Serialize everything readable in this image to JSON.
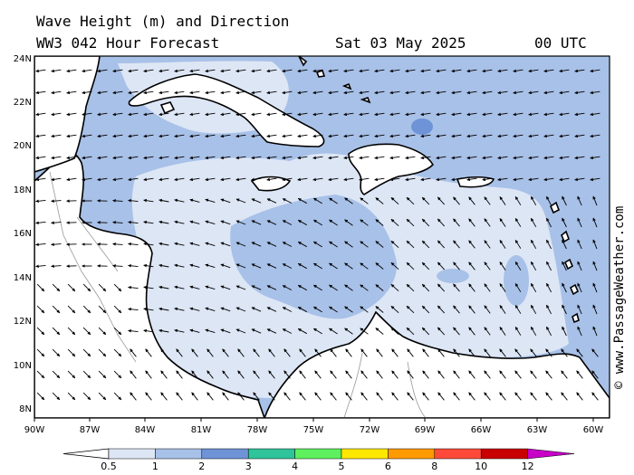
{
  "header": {
    "title": "Wave Height (m) and Direction",
    "subtitle": "WW3 042 Hour Forecast",
    "date": "Sat 03 May 2025",
    "time": "00 UTC"
  },
  "credit": "© www.PassageWeather.com",
  "map": {
    "lon_range": [
      -90,
      -59
    ],
    "lat_range": [
      7.5,
      24
    ],
    "lon_labels": [
      "90W",
      "87W",
      "84W",
      "81W",
      "78W",
      "75W",
      "72W",
      "69W",
      "66W",
      "63W",
      "60W"
    ],
    "lat_labels": [
      "24N",
      "22N",
      "20N",
      "18N",
      "16N",
      "14N",
      "12N",
      "10N",
      "8N"
    ],
    "land_color": "#ffffff",
    "coast_color": "#000000"
  },
  "legend": {
    "units": "m",
    "bins": [
      {
        "label": "0.5",
        "color": "#dde6f5"
      },
      {
        "label": "1",
        "color": "#a8c1e8"
      },
      {
        "label": "2",
        "color": "#6e93d6"
      },
      {
        "label": "3",
        "color": "#2fc49a"
      },
      {
        "label": "4",
        "color": "#5ef05e"
      },
      {
        "label": "5",
        "color": "#ffe800"
      },
      {
        "label": "6",
        "color": "#ff9a00"
      },
      {
        "label": "8",
        "color": "#ff4a3a"
      },
      {
        "label": "10",
        "color": "#c80000"
      },
      {
        "label": "12",
        "color": "#c800c8"
      }
    ]
  }
}
